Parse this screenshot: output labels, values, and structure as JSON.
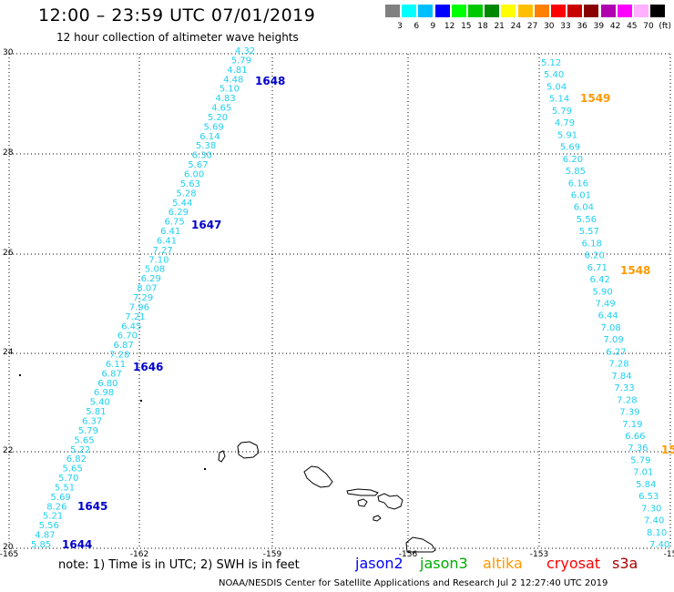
{
  "header": {
    "title": "12:00 – 23:59 UTC 07/01/2019",
    "subtitle": "12 hour collection of altimeter wave heights"
  },
  "color_scale": {
    "swatches": [
      "#808080",
      "#00ffff",
      "#00bfff",
      "#0000ff",
      "#00ff00",
      "#00c800",
      "#008800",
      "#ffff00",
      "#ffbf00",
      "#ff7f00",
      "#ff0000",
      "#c80000",
      "#880000",
      "#b000b0",
      "#ff00ff",
      "#ffb0ff",
      "#000000"
    ],
    "labels": [
      "3",
      "6",
      "9",
      "12",
      "15",
      "18",
      "21",
      "24",
      "27",
      "30",
      "33",
      "36",
      "39",
      "42",
      "45",
      "70",
      "(ft)"
    ]
  },
  "axes": {
    "lon_labels": [
      "-165",
      "-162",
      "-159",
      "-156",
      "-153",
      "-15"
    ],
    "lat_labels": [
      "30",
      "28",
      "26",
      "24",
      "22",
      "20"
    ]
  },
  "track_west": {
    "color": "#1fd0f0",
    "values": [
      "4.32",
      "5.79",
      "4.81",
      "4.48",
      "5.10",
      "4.83",
      "4.65",
      "5.20",
      "5.69",
      "6.14",
      "5.38",
      "6.30",
      "5.67",
      "6.00",
      "5.63",
      "5.28",
      "5.44",
      "6.29",
      "6.75",
      "6.41",
      "6.41",
      "7.27",
      "7.10",
      "5.08",
      "6.29",
      "8.07",
      "7.29",
      "7.96",
      "7.21",
      "6.45",
      "6.70",
      "6.87",
      "7.28",
      "6.11",
      "6.87",
      "6.80",
      "6.98",
      "5.40",
      "5.81",
      "6.37",
      "5.79",
      "5.65",
      "5.22",
      "6.82",
      "5.65",
      "5.70",
      "5.51",
      "5.69",
      "8.26",
      "5.21",
      "5.56",
      "4.87",
      "5.85"
    ],
    "times": [
      "1648",
      "1647",
      "1646",
      "1645",
      "1644"
    ],
    "time_color": "#0000cc"
  },
  "track_east": {
    "color": "#1fd0f0",
    "values": [
      "5.12",
      "5.40",
      "5.04",
      "5.14",
      "5.79",
      "4.79",
      "5.91",
      "5.69",
      "6.20",
      "5.85",
      "6.16",
      "6.01",
      "6.04",
      "5.56",
      "5.57",
      "6.18",
      "6.20",
      "6.71",
      "6.42",
      "5.90",
      "7.49",
      "6.44",
      "7.08",
      "7.09",
      "6.27",
      "7.28",
      "7.84",
      "7.33",
      "7.28",
      "7.39",
      "7.19",
      "6.66",
      "7.36",
      "5.79",
      "7.01",
      "5.84",
      "6.53",
      "7.30",
      "7.40",
      "8.10",
      "7.40"
    ],
    "times": [
      "1549",
      "1548",
      "15"
    ],
    "time_color": "#ff9900"
  },
  "footer": {
    "note": "note:  1) Time is in UTC;  2) SWH is in feet",
    "satellites": [
      {
        "name": "jason2",
        "color": "#0000ff"
      },
      {
        "name": "jason3",
        "color": "#00aa00"
      },
      {
        "name": "altika",
        "color": "#ff9900"
      },
      {
        "name": "cryosat",
        "color": "#ff0000"
      },
      {
        "name": "s3a",
        "color": "#aa0000"
      }
    ],
    "credit": "NOAA/NESDIS Center for Satellite Applications and Research    Jul  2 12:27:40 UTC 2019"
  }
}
